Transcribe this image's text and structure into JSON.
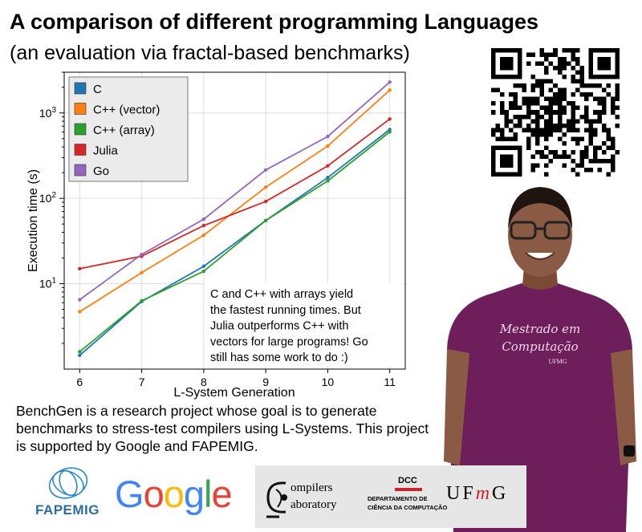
{
  "poster": {
    "title": "A comparison of different programming Languages",
    "subtitle": "(an evaluation via fractal-based benchmarks)",
    "description": "BenchGen is a research project whose goal is to generate benchmarks to stress-test compilers using L-Systems. This project is supported by Google and FAPEMIG."
  },
  "chart_data": {
    "type": "line",
    "xlabel": "L-System Generation",
    "ylabel": "Execution time (s)",
    "x": [
      6,
      7,
      8,
      9,
      10,
      11
    ],
    "xlim": [
      5.75,
      11.25
    ],
    "ylim": [
      1.0,
      3000
    ],
    "yscale": "log",
    "ytick_labels": [
      "10^1",
      "10^2",
      "10^3"
    ],
    "grid": true,
    "legend_position": "top-left",
    "series": [
      {
        "name": "C",
        "color": "#1f77b4",
        "values": [
          1.45,
          6.2,
          16,
          55,
          175,
          640
        ]
      },
      {
        "name": "C++ (vector)",
        "color": "#ff7f0e",
        "values": [
          4.7,
          13.5,
          37,
          135,
          410,
          1850
        ]
      },
      {
        "name": "C++ (array)",
        "color": "#2ca02c",
        "values": [
          1.6,
          6.3,
          14,
          55,
          160,
          600
        ]
      },
      {
        "name": "Julia",
        "color": "#d62728",
        "values": [
          15,
          21,
          48,
          92,
          240,
          850
        ]
      },
      {
        "name": "Go",
        "color": "#9467bd",
        "values": [
          6.5,
          22,
          57,
          215,
          530,
          2300
        ]
      }
    ],
    "annotation": [
      "C and C++ with arrays yield",
      "the fastest running times. But",
      "Julia outperforms C++ with",
      "vectors for large programs! Go",
      "still has some work to do :)"
    ]
  },
  "logos": {
    "fapemig": "FAPEMIG",
    "google_letters": [
      {
        "char": "G",
        "color": "#4285F4"
      },
      {
        "char": "o",
        "color": "#EA4335"
      },
      {
        "char": "o",
        "color": "#FBBC05"
      },
      {
        "char": "g",
        "color": "#4285F4"
      },
      {
        "char": "l",
        "color": "#34A853"
      },
      {
        "char": "e",
        "color": "#EA4335"
      }
    ],
    "compilers_line1": "ompilers",
    "compilers_line2": "aboratory",
    "dcc_acronym": "DCC",
    "dcc_line1": "DEPARTAMENTO DE",
    "dcc_line2": "CIÊNCIA DA COMPUTAÇÃO",
    "ufmg_prefix": "UF",
    "ufmg_m": "m",
    "ufmg_suffix": "G"
  },
  "photo": {
    "shirt_line1": "Mestrado em",
    "shirt_line2": "Computação",
    "shirt_logo": "UFMG"
  }
}
